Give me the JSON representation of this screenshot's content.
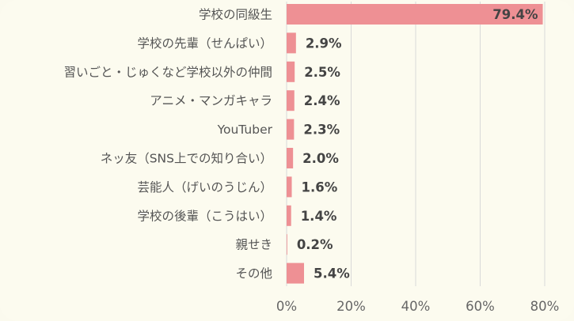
{
  "chart_data": {
    "type": "bar",
    "orientation": "horizontal",
    "categories": [
      "学校の同級生",
      "学校の先輩（せんぱい）",
      "習いごと・じゅくなど学校以外の仲間",
      "アニメ・マンガキャラ",
      "YouTuber",
      "ネッ友（SNS上での知り合い）",
      "芸能人（げいのうじん）",
      "学校の後輩（こうはい）",
      "親せき",
      "その他"
    ],
    "values": [
      79.4,
      2.9,
      2.5,
      2.4,
      2.3,
      2.0,
      1.6,
      1.4,
      0.2,
      5.4
    ],
    "value_labels": [
      "79.4%",
      "2.9%",
      "2.5%",
      "2.4%",
      "2.3%",
      "2.0%",
      "1.6%",
      "1.4%",
      "0.2%",
      "5.4%"
    ],
    "x_ticks": [
      "0%",
      "20%",
      "40%",
      "60%",
      "80%"
    ],
    "x_tick_values": [
      0,
      20,
      40,
      60,
      80
    ],
    "xlim": [
      0,
      80
    ],
    "grid": true,
    "bar_color": "#ee9094",
    "grid_color": "#d9d9d9",
    "background_color": "#fcfbef"
  }
}
